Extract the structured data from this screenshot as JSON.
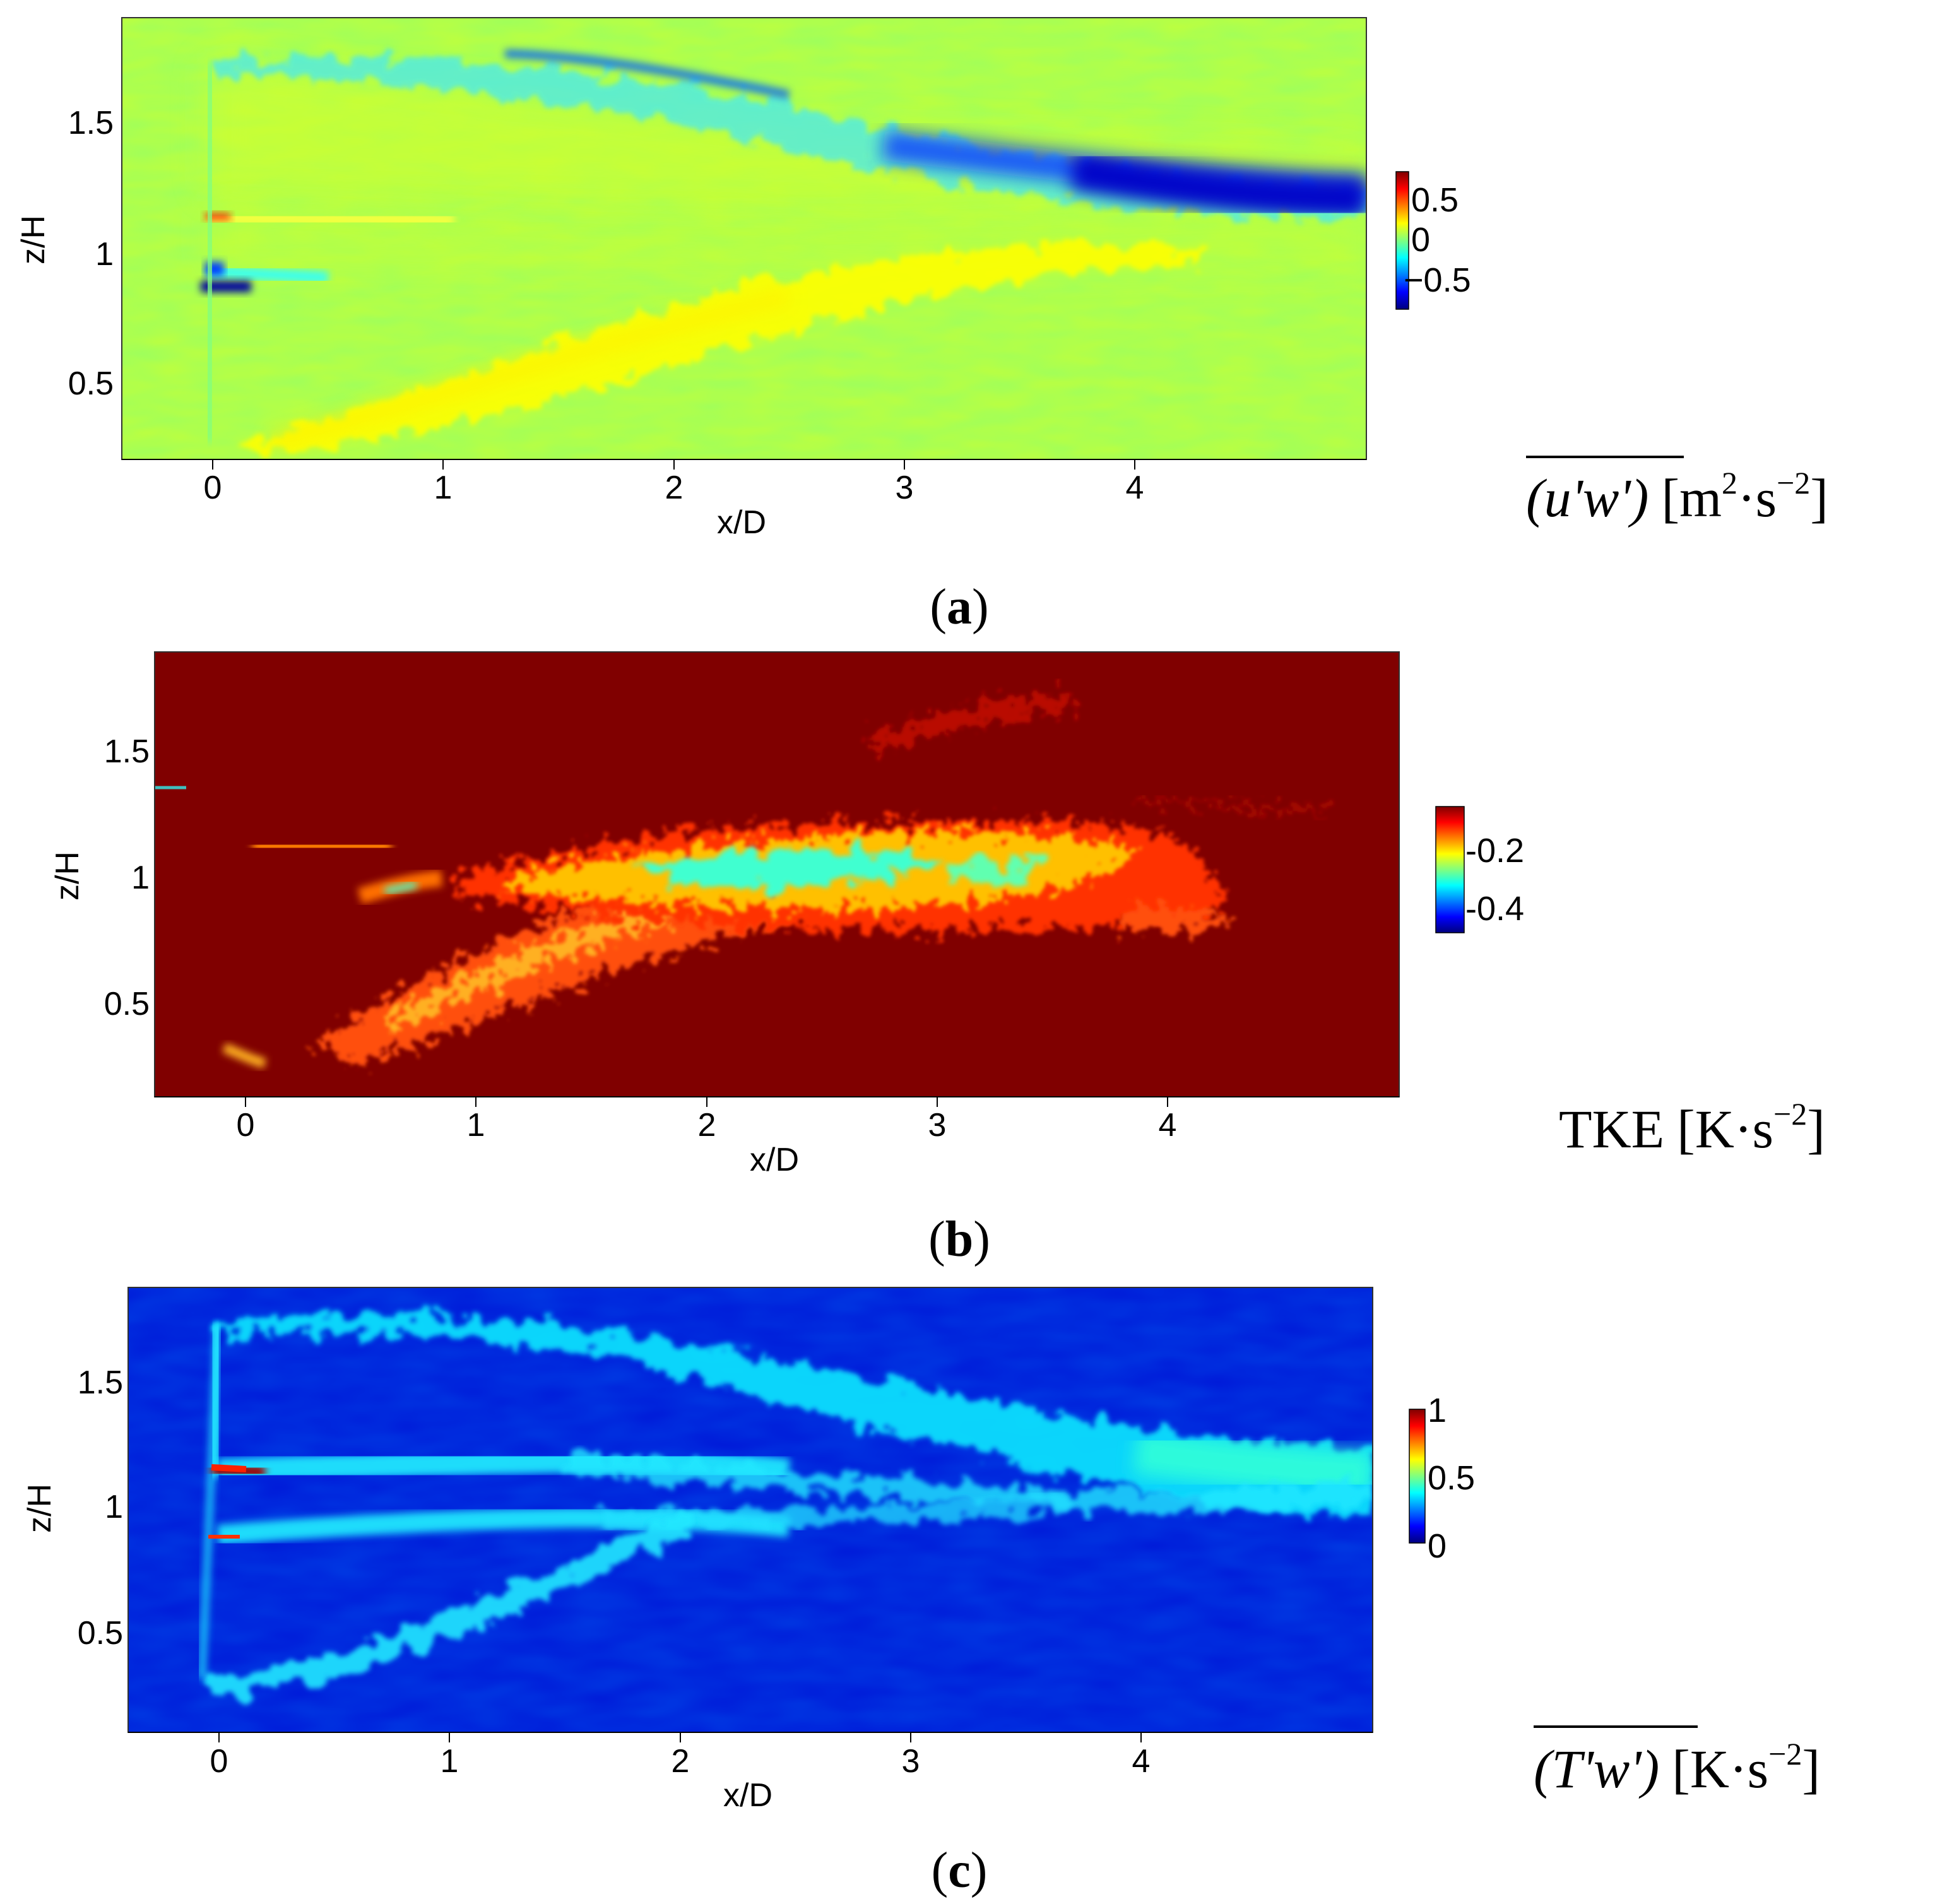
{
  "chart_data": [
    {
      "type": "heatmap",
      "panel_label": "a",
      "xlabel": "x/D",
      "ylabel": "z/H",
      "xlim": [
        -0.4,
        5.0
      ],
      "ylim": [
        0.15,
        1.85
      ],
      "xticks": [
        0,
        1,
        2,
        3,
        4
      ],
      "yticks": [
        0.5,
        1,
        1.5
      ],
      "colorbar": {
        "label": "(u'w') [m²·s⁻²]",
        "overline": "(u'w')",
        "unit_main": "[m",
        "unit_mid": "·s",
        "unit_close": "]",
        "sup1": "2",
        "sup2": "−2",
        "ticks": [
          0.5,
          0,
          -0.5
        ],
        "tick_labels": [
          "0.5",
          "0",
          "−0.5"
        ],
        "range": [
          -0.8,
          0.8
        ],
        "colormap": "jet"
      },
      "background_value": 0.1,
      "features": [
        {
          "description": "negative shear layer from rotor top toward x/D≈5 at z/H≈1.1",
          "value": -0.6
        },
        {
          "description": "positive shear layer from rotor bottom rising to z/H≈1",
          "value": 0.3
        },
        {
          "description": "peak near hub tip at x/D=0, z/H≈1.12",
          "value": 0.8
        },
        {
          "description": "minimum near hub at x/D=0, z/H≈0.88",
          "value": -0.8
        }
      ]
    },
    {
      "type": "heatmap",
      "panel_label": "b",
      "xlabel": "x/D",
      "ylabel": "z/H",
      "xlim": [
        -0.4,
        5.0
      ],
      "ylim": [
        0.15,
        1.85
      ],
      "xticks": [
        0,
        1,
        2,
        3,
        4
      ],
      "yticks": [
        0.5,
        1,
        1.5
      ],
      "colorbar": {
        "label": "TKE [K·s⁻²]",
        "prefix": "TKE",
        "unit_main": "[K",
        "unit_mid": "·s",
        "unit_close": "]",
        "sup": "−2",
        "ticks": [
          -0.2,
          -0.4
        ],
        "tick_labels": [
          "-0.2",
          "-0.4"
        ],
        "range": [
          -0.5,
          -0.1
        ],
        "colormap": "jet"
      },
      "background_value": -0.1,
      "features": [
        {
          "description": "central wake region x/D 1.7–3.2 at z/H≈1",
          "value": -0.25
        },
        {
          "description": "lower shear layer patches from x/D 0.3 to 2.5",
          "value": -0.13
        }
      ]
    },
    {
      "type": "heatmap",
      "panel_label": "c",
      "xlabel": "x/D",
      "ylabel": "z/H",
      "xlim": [
        -0.4,
        5.0
      ],
      "ylim": [
        0.15,
        1.85
      ],
      "xticks": [
        0,
        1,
        2,
        3,
        4
      ],
      "yticks": [
        0.5,
        1,
        1.5
      ],
      "colorbar": {
        "label": "(T'w') [K·s⁻²]",
        "overline": "(T'w')",
        "unit_main": "[K",
        "unit_mid": "·s",
        "unit_close": "]",
        "sup": "−2",
        "ticks": [
          1,
          0.5,
          0
        ],
        "tick_labels": [
          "1",
          "0.5",
          "0"
        ],
        "range": [
          0,
          1
        ],
        "colormap": "jet"
      },
      "background_value": 0.1,
      "features": [
        {
          "description": "upper tip shear layer from z/H≈1.75 to z/H≈1.1 at x/D 5",
          "value": 0.45
        },
        {
          "description": "hub layers at z/H≈1.1 and 0.88",
          "value": 0.45
        },
        {
          "description": "lower tip shear layer rising from z/H≈0.3",
          "value": 0.4
        },
        {
          "description": "hub peaks at x/D=0",
          "value": 1.0
        }
      ]
    }
  ]
}
